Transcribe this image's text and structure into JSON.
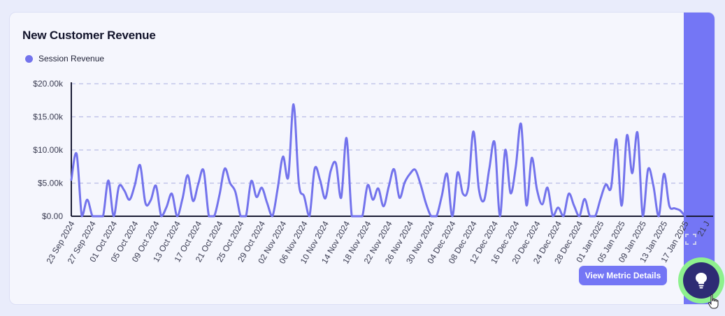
{
  "card": {
    "title": "New Customer Revenue"
  },
  "actions": {
    "view_details_label": "View Metric Details"
  },
  "colors": {
    "series": "#7373ec",
    "axis": "#1a1c35",
    "grid": "#b9bde6",
    "accent": "#7476f5",
    "fab_ring": "#8ef18e",
    "fab_fill": "#2e2c74"
  },
  "icons": {
    "expand": "expand-icon",
    "fab": "lightbulb-icon",
    "cursor": "hand-pointer-icon"
  },
  "chart_data": {
    "type": "line",
    "title": "New Customer Revenue",
    "legend": {
      "position": "top-left",
      "entries": [
        "Session Revenue"
      ]
    },
    "ylim": [
      0,
      20000
    ],
    "y_ticks": [
      "$0.00",
      "$5.00k",
      "$10.00k",
      "$15.00k",
      "$20.00k"
    ],
    "grid": true,
    "x_start": "2024-09-23",
    "x_tick_labels": [
      "23 Sep 2024",
      "27 Sep 2024",
      "01 Oct 2024",
      "05 Oct 2024",
      "09 Oct 2024",
      "13 Oct 2024",
      "17 Oct 2024",
      "21 Oct 2024",
      "25 Oct 2024",
      "29 Oct 2024",
      "02 Nov 2024",
      "06 Nov 2024",
      "10 Nov 2024",
      "14 Nov 2024",
      "18 Nov 2024",
      "22 Nov 2024",
      "26 Nov 2024",
      "30 Nov 2024",
      "04 Dec 2024",
      "08 Dec 2024",
      "12 Dec 2024",
      "16 Dec 2024",
      "20 Dec 2024",
      "24 Dec 2024",
      "28 Dec 2024",
      "01 Jan 2025",
      "05 Jan 2025",
      "09 Jan 2025",
      "13 Jan 2025",
      "17 Jan 2025",
      "21 J"
    ],
    "series": [
      {
        "name": "Session Revenue",
        "values": [
          5500,
          9400,
          0,
          2500,
          0,
          0,
          0,
          5400,
          0,
          4500,
          3900,
          2500,
          4700,
          7700,
          2000,
          2400,
          4600,
          0,
          1400,
          3400,
          0,
          2600,
          6200,
          2300,
          4900,
          6900,
          0,
          0,
          3200,
          7200,
          5000,
          3700,
          0,
          0,
          5300,
          2900,
          4300,
          2000,
          0,
          4200,
          9000,
          5900,
          16900,
          4900,
          3000,
          0,
          7200,
          5500,
          2700,
          6800,
          8000,
          2800,
          11800,
          0,
          0,
          0,
          4700,
          2500,
          4200,
          1500,
          4500,
          7100,
          2800,
          5100,
          6400,
          7000,
          4800,
          2000,
          0,
          0,
          3000,
          6400,
          0,
          6600,
          3400,
          4300,
          12800,
          4200,
          2400,
          7200,
          11100,
          0,
          10000,
          3500,
          7500,
          13900,
          1700,
          8800,
          4000,
          1800,
          4300,
          0,
          1300,
          0,
          3400,
          1600,
          0,
          2600,
          0,
          0,
          2600,
          4800,
          4300,
          11600,
          1600,
          12200,
          6500,
          12600,
          0,
          7100,
          4600,
          0,
          6400,
          1600,
          1200,
          900,
          0
        ]
      }
    ]
  }
}
